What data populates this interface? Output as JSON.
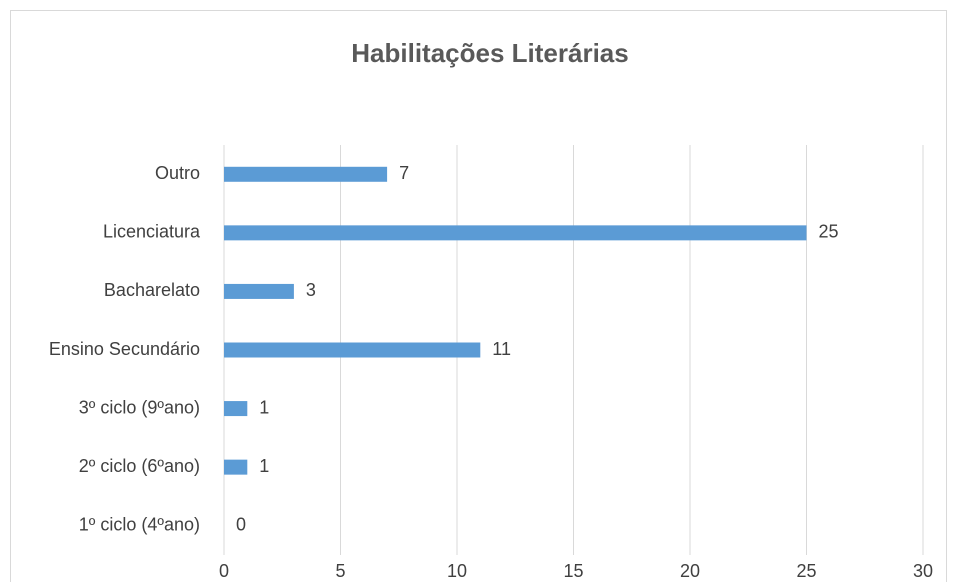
{
  "chart_data": {
    "type": "barh",
    "title": "Habilitações Literárias",
    "categories": [
      "1º ciclo (4ºano)",
      "2º ciclo (6ºano)",
      "3º ciclo (9ºano)",
      "Ensino Secundário",
      "Bacharelato",
      "Licenciatura",
      "Outro"
    ],
    "values": [
      0,
      1,
      1,
      11,
      3,
      25,
      7
    ],
    "color": "#5b9bd5",
    "xlim": [
      0,
      30
    ],
    "xticks": [
      0,
      5,
      10,
      15,
      20,
      25,
      30
    ],
    "grid": true
  }
}
